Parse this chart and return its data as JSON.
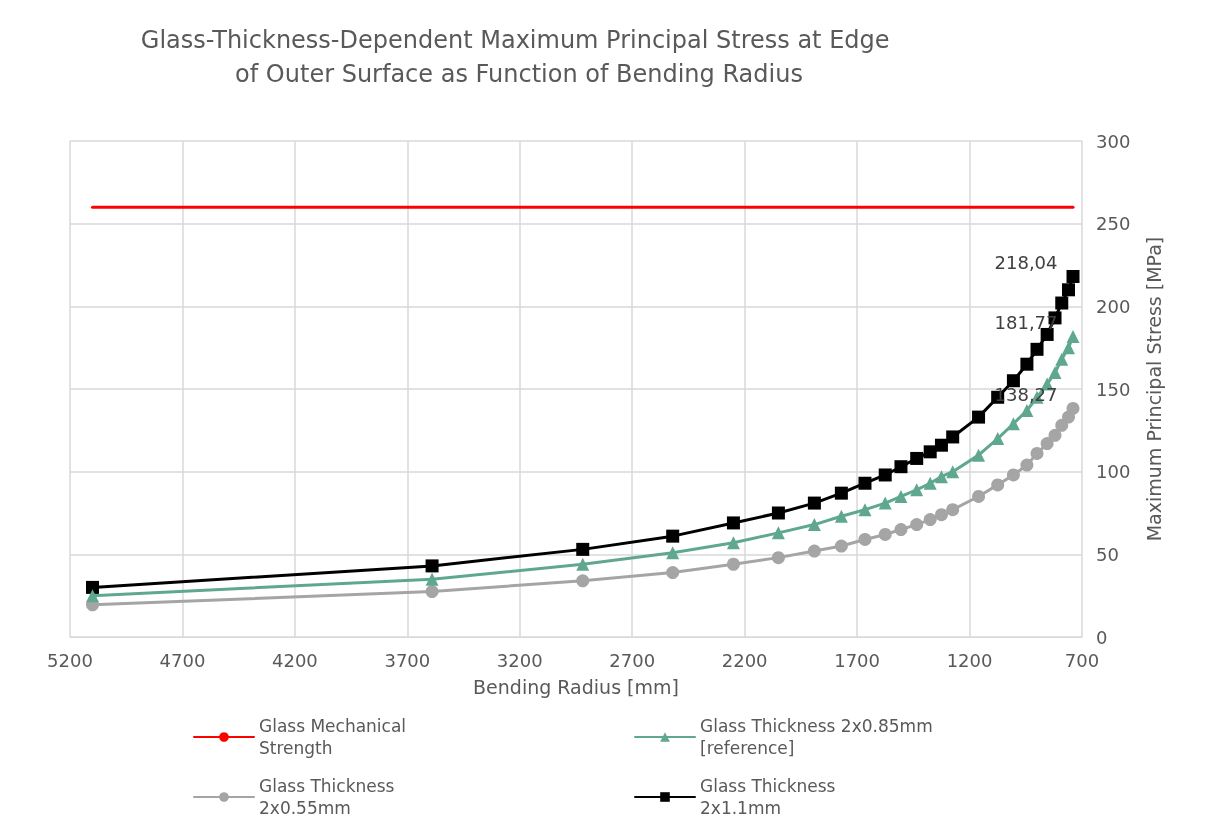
{
  "chart_data": {
    "type": "line",
    "title": "Glass-Thickness-Dependent Maximum Principal Stress at Edge of Outer Surface as Function of Bending Radius",
    "xlabel": "Bending Radius [mm]",
    "ylabel": "Maximum Principal Stress [MPa]",
    "x": [
      5100,
      3590,
      2920,
      2520,
      2250,
      2050,
      1890,
      1770,
      1665,
      1575,
      1505,
      1435,
      1375,
      1325,
      1275,
      1160,
      1075,
      1005,
      945,
      900,
      855,
      820,
      790,
      760,
      740
    ],
    "xlim": [
      5200,
      700
    ],
    "xticks": [
      5200,
      4700,
      4200,
      3700,
      3200,
      2700,
      2200,
      1700,
      1200,
      700
    ],
    "ylim": [
      0,
      300
    ],
    "yticks": [
      0,
      50,
      100,
      150,
      200,
      250,
      300
    ],
    "grid": true,
    "legend": "bottom",
    "line_style": "solid",
    "series": [
      {
        "name": "Glass Mechanical Strength",
        "color": "#ff0000",
        "marker": "none",
        "values": [
          260,
          260,
          260,
          260,
          260,
          260,
          260,
          260,
          260,
          260,
          260,
          260,
          260,
          260,
          260,
          260,
          260,
          260,
          260,
          260,
          260,
          260,
          260,
          260,
          260
        ]
      },
      {
        "name": "Glass Thickness 2x0.85mm [reference]",
        "color": "#5fa88f",
        "marker": "triangle",
        "values": [
          25,
          35,
          44,
          51,
          57,
          63,
          68,
          73,
          77,
          81,
          85,
          89,
          93,
          97,
          100,
          110,
          120,
          129,
          137,
          145,
          153,
          160,
          168,
          175,
          181.77
        ],
        "value_labels": [
          null,
          null,
          null,
          null,
          null,
          null,
          null,
          null,
          null,
          null,
          null,
          null,
          null,
          null,
          null,
          null,
          null,
          null,
          null,
          null,
          null,
          null,
          null,
          null,
          "181,77"
        ]
      },
      {
        "name": "Glass Thickness 2x0.55mm",
        "color": "#a5a5a5",
        "marker": "circle",
        "values": [
          19.5,
          27.5,
          34,
          39,
          44,
          48,
          52,
          55,
          59,
          62,
          65,
          68,
          71,
          74,
          77,
          85,
          92,
          98,
          104,
          111,
          117,
          122,
          128,
          133,
          138.27
        ],
        "value_labels": [
          null,
          null,
          null,
          null,
          null,
          null,
          null,
          null,
          null,
          null,
          null,
          null,
          null,
          null,
          null,
          null,
          null,
          null,
          null,
          null,
          null,
          null,
          null,
          null,
          "138,27"
        ]
      },
      {
        "name": "Glass Thickness 2x1.1mm",
        "color": "#000000",
        "marker": "square",
        "values": [
          30,
          43,
          53,
          61,
          69,
          75,
          81,
          87,
          93,
          98,
          103,
          108,
          112,
          116,
          121,
          133,
          145,
          155,
          165,
          174,
          183,
          193,
          202,
          210,
          218.04
        ],
        "value_labels": [
          null,
          null,
          null,
          null,
          null,
          null,
          null,
          null,
          null,
          null,
          null,
          null,
          null,
          null,
          null,
          null,
          null,
          null,
          null,
          null,
          null,
          null,
          null,
          null,
          "218,04"
        ]
      }
    ]
  }
}
